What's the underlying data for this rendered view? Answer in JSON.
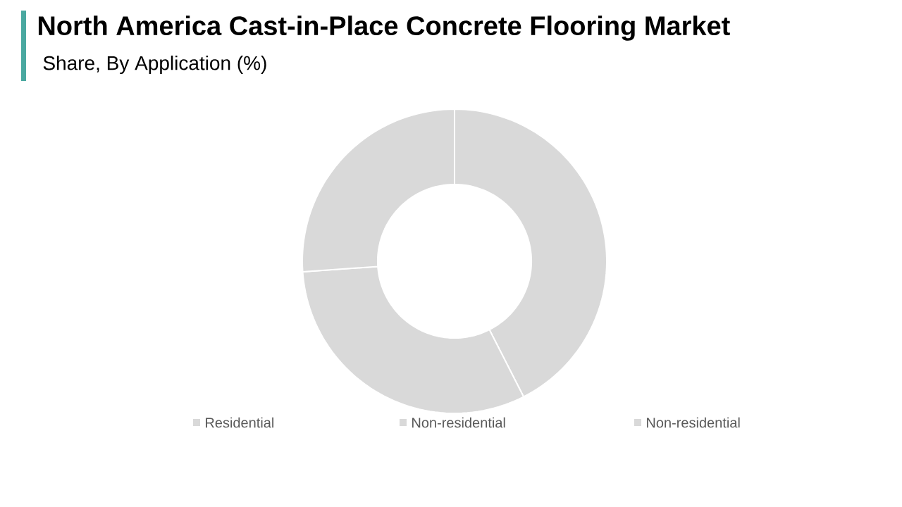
{
  "chart_data": {
    "type": "donut",
    "title": "North America Cast-in-Place Concrete Flooring Market",
    "subtitle": "Share, By Application (%)",
    "categories": [
      "Residential",
      "Non-residential",
      "Non-residential"
    ],
    "values": [
      42.5,
      31.4,
      26.1
    ],
    "colors": [
      "#d9d9d9",
      "#d9d9d9",
      "#d9d9d9"
    ],
    "legend": "bottom"
  }
}
